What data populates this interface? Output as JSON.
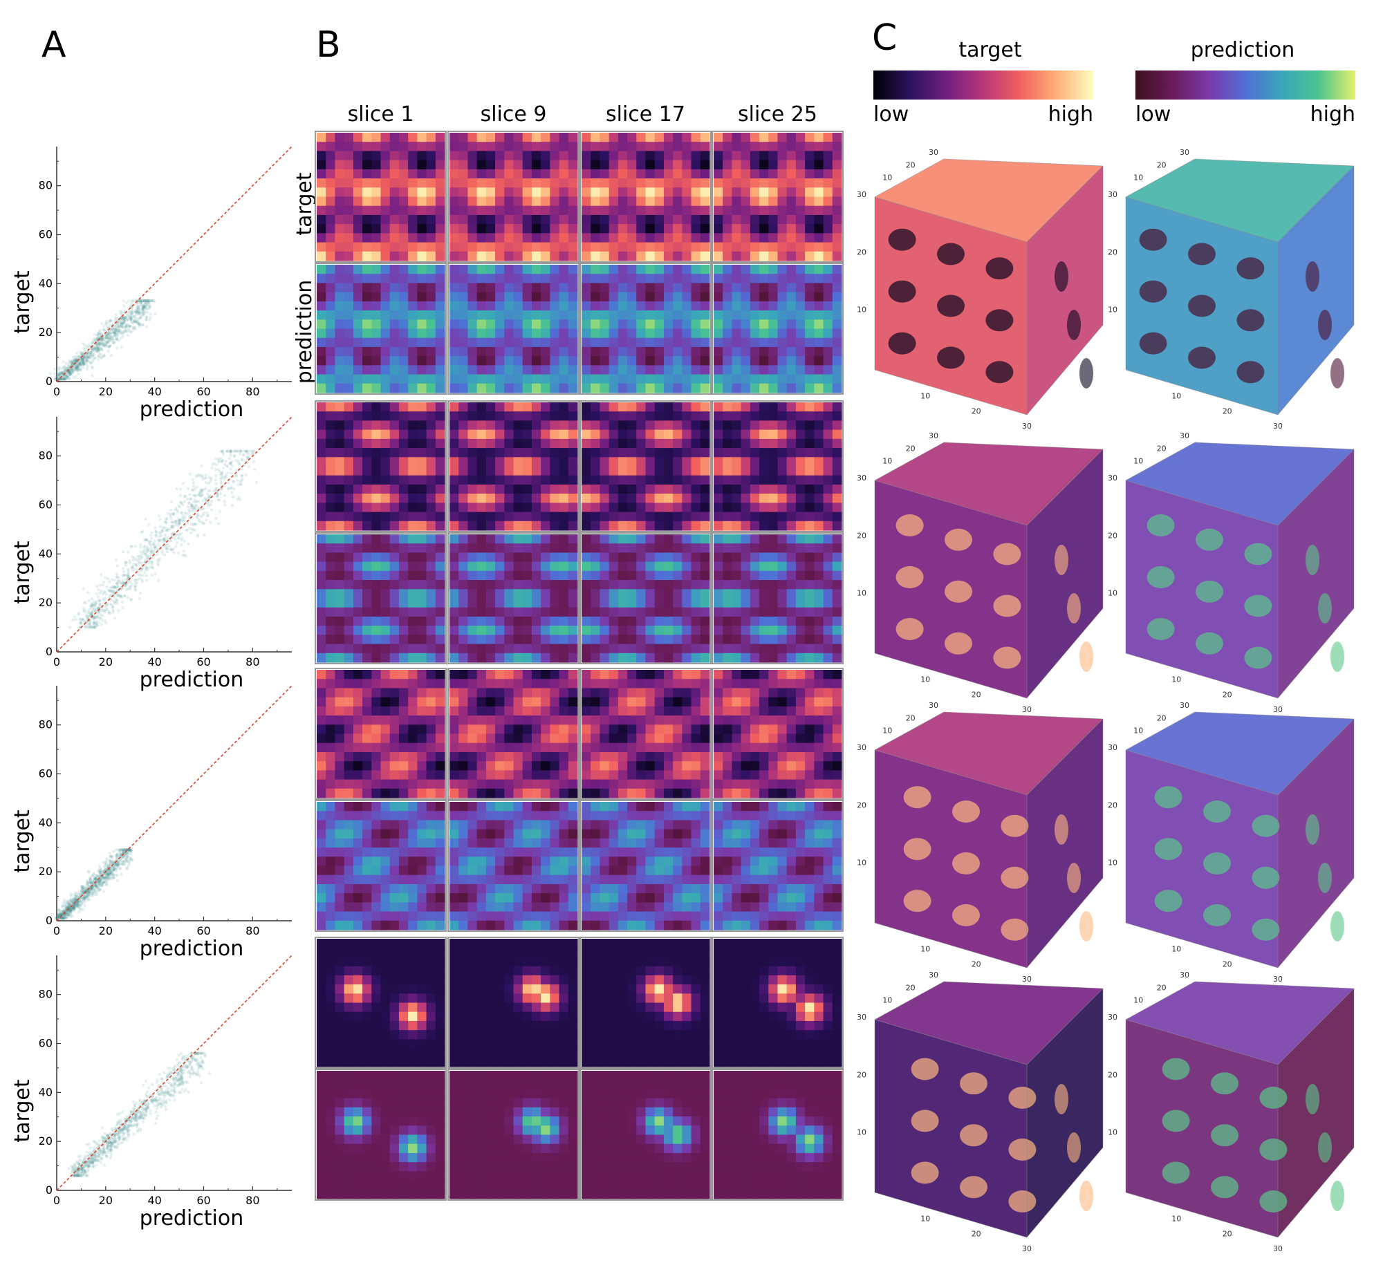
{
  "panels": {
    "a_letter": "A",
    "b_letter": "B",
    "c_letter": "C"
  },
  "colors": {
    "scatter_point": "#3d8c89",
    "identity_line": "#d9452b",
    "axis": "#333333",
    "tile_border": "#9a9a9a"
  },
  "panel_b": {
    "column_headers": [
      "slice 1",
      "slice 9",
      "slice 17",
      "slice 25"
    ],
    "row_labels": {
      "target": "target",
      "prediction": "prediction"
    }
  },
  "panel_c": {
    "target_title": "target",
    "prediction_title": "prediction",
    "colorbar_low": "low",
    "colorbar_high": "high",
    "target_colormap": [
      "#000004",
      "#2c115f",
      "#721f81",
      "#b73779",
      "#f1605d",
      "#feb078",
      "#fcfdbf"
    ],
    "prediction_colormap": [
      "#3b0f1d",
      "#6a1b5a",
      "#7a3aa8",
      "#4f6fd6",
      "#3aa6b9",
      "#4cc48f",
      "#e6ef6a"
    ],
    "cube_axis_ticks": [
      "10",
      "20",
      "30"
    ]
  },
  "chart_data": [
    {
      "type": "scatter",
      "title": "",
      "xlabel": "prediction",
      "ylabel": "target",
      "xlim": [
        0,
        96
      ],
      "ylim": [
        0,
        96
      ],
      "xticks": [
        "0",
        "20",
        "40",
        "60",
        "80"
      ],
      "yticks": [
        "0",
        "20",
        "40",
        "60",
        "80"
      ],
      "reference_line": "y = x",
      "cloud": {
        "x_range": [
          1,
          38
        ],
        "target_range": [
          1,
          33
        ],
        "spread": 2.5
      }
    },
    {
      "type": "scatter",
      "title": "",
      "xlabel": "prediction",
      "ylabel": "target",
      "xlim": [
        0,
        96
      ],
      "ylim": [
        0,
        96
      ],
      "xticks": [
        "0",
        "20",
        "40",
        "60",
        "80"
      ],
      "yticks": [
        "0",
        "20",
        "40",
        "60",
        "80"
      ],
      "reference_line": "y = x",
      "cloud": {
        "x_range": [
          10,
          78
        ],
        "target_range": [
          10,
          82
        ],
        "spread": 5
      }
    },
    {
      "type": "scatter",
      "title": "",
      "xlabel": "prediction",
      "ylabel": "target",
      "xlim": [
        0,
        96
      ],
      "ylim": [
        0,
        96
      ],
      "xticks": [
        "0",
        "20",
        "40",
        "60",
        "80"
      ],
      "yticks": [
        "0",
        "20",
        "40",
        "60",
        "80"
      ],
      "reference_line": "y = x",
      "cloud": {
        "x_range": [
          1,
          30
        ],
        "target_range": [
          1,
          29
        ],
        "spread": 2
      }
    },
    {
      "type": "scatter",
      "title": "",
      "xlabel": "prediction",
      "ylabel": "target",
      "xlim": [
        0,
        96
      ],
      "ylim": [
        0,
        96
      ],
      "xticks": [
        "0",
        "20",
        "40",
        "60",
        "80"
      ],
      "yticks": [
        "0",
        "20",
        "40",
        "60",
        "80"
      ],
      "reference_line": "y = x",
      "cloud": {
        "x_range": [
          7,
          60
        ],
        "target_range": [
          6,
          56
        ],
        "spread": 3
      }
    }
  ]
}
